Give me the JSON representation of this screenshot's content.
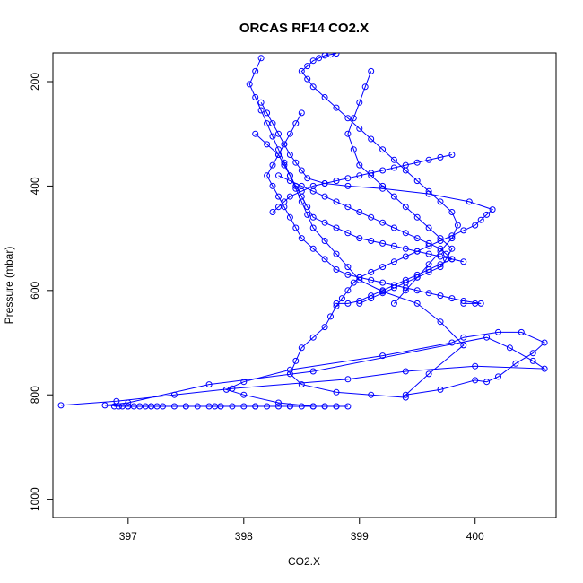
{
  "chart_data": {
    "type": "line",
    "title": "ORCAS RF14 CO2.X",
    "xlabel": "CO2.X",
    "ylabel": "Pressure (mbar)",
    "xlim": [
      396.35,
      400.7
    ],
    "ylim": [
      1035,
      145
    ],
    "y_reversed": true,
    "x_ticks": [
      397,
      398,
      399,
      400
    ],
    "y_ticks": [
      200,
      400,
      600,
      800,
      1000
    ],
    "marker": "open-circle",
    "color": "#0000ff",
    "grid": false,
    "legend": "none",
    "series": [
      {
        "x": [
          396.92,
          396.88,
          396.95,
          397.0,
          397.05,
          397.1,
          397.15,
          397.2,
          397.25,
          397.3,
          397.4,
          397.5,
          397.6,
          397.7,
          397.75,
          397.8,
          397.9,
          398.0,
          398.1,
          398.2,
          398.3,
          398.4,
          398.5,
          398.6,
          398.7,
          398.8,
          398.9
        ],
        "y": [
          822,
          822,
          822,
          822,
          822,
          822,
          822,
          822,
          822,
          822,
          822,
          822,
          822,
          822,
          822,
          822,
          822,
          822,
          822,
          822,
          822,
          822,
          822,
          822,
          822,
          822,
          822
        ]
      },
      {
        "x": [
          396.42,
          396.9,
          397.4,
          397.9,
          398.9,
          399.4,
          400.0,
          400.6,
          400.5,
          400.3,
          400.1,
          398.6,
          397.7,
          397.0,
          396.8,
          397.0,
          397.2,
          397.5,
          397.8,
          398.1,
          398.4,
          398.7,
          398.8
        ],
        "y": [
          820,
          812,
          800,
          788,
          770,
          755,
          745,
          750,
          735,
          710,
          690,
          755,
          780,
          815,
          820,
          822,
          822,
          822,
          822,
          822,
          822,
          822,
          822
        ]
      },
      {
        "x": [
          398.6,
          398.3,
          398.0,
          397.85,
          398.0,
          398.4,
          399.2,
          399.8,
          399.9,
          400.2,
          400.4,
          400.6,
          400.5,
          400.35,
          400.2,
          400.1,
          400.0,
          399.7,
          399.4,
          399.6,
          399.9,
          399.7,
          399.5,
          399.2,
          399.0,
          398.9,
          398.8,
          398.7,
          398.6,
          398.55,
          398.5,
          398.45,
          398.4,
          398.35,
          398.3,
          398.25,
          398.2,
          398.15,
          398.1,
          398.05,
          398.1,
          398.15
        ],
        "y": [
          822,
          815,
          800,
          790,
          775,
          752,
          725,
          700,
          690,
          680,
          680,
          700,
          720,
          740,
          765,
          775,
          772,
          790,
          800,
          760,
          705,
          660,
          625,
          602,
          580,
          555,
          530,
          505,
          480,
          455,
          430,
          405,
          380,
          355,
          330,
          305,
          280,
          255,
          230,
          205,
          180,
          155
        ]
      },
      {
        "x": [
          399.4,
          399.1,
          398.8,
          398.5,
          398.4,
          398.45,
          398.5,
          398.6,
          398.7,
          398.75,
          398.8,
          398.85,
          398.9,
          398.95,
          399.0,
          399.1,
          399.2,
          399.3,
          399.4,
          399.5,
          399.6,
          399.7,
          399.8,
          399.9,
          400.0,
          400.05,
          400.1,
          400.15,
          399.95,
          399.6,
          399.2,
          398.9,
          398.7,
          398.55,
          398.5,
          398.45,
          398.4,
          398.35,
          398.3,
          398.25,
          398.2,
          398.15
        ],
        "y": [
          805,
          800,
          795,
          780,
          760,
          735,
          710,
          690,
          670,
          650,
          630,
          615,
          600,
          585,
          575,
          565,
          555,
          545,
          535,
          525,
          515,
          505,
          495,
          485,
          475,
          465,
          455,
          445,
          430,
          415,
          405,
          400,
          395,
          385,
          370,
          355,
          340,
          320,
          300,
          280,
          260,
          240
        ]
      },
      {
        "x": [
          399.9,
          400.0,
          400.05,
          399.9,
          399.8,
          399.7,
          399.6,
          399.5,
          399.4,
          399.3,
          399.2,
          399.1,
          399.0,
          398.9,
          398.8,
          398.7,
          398.6,
          398.5,
          398.45,
          398.4,
          398.35,
          398.3,
          398.25,
          398.2,
          398.25,
          398.3,
          398.35,
          398.4,
          398.45,
          398.5
        ],
        "y": [
          625,
          625,
          625,
          620,
          615,
          610,
          605,
          600,
          595,
          590,
          585,
          580,
          575,
          570,
          560,
          540,
          520,
          500,
          480,
          460,
          440,
          420,
          400,
          380,
          360,
          340,
          320,
          300,
          280,
          260
        ]
      },
      {
        "x": [
          399.3,
          399.4,
          399.5,
          399.6,
          399.7,
          399.8,
          399.85,
          399.8,
          399.7,
          399.6,
          399.5,
          399.4,
          399.3,
          399.2,
          399.1,
          399.0,
          398.9,
          398.8,
          398.7,
          398.6,
          398.55,
          398.5,
          398.55,
          398.6,
          398.65,
          398.7,
          398.75,
          398.8
        ],
        "y": [
          625,
          600,
          575,
          550,
          525,
          500,
          475,
          450,
          430,
          410,
          390,
          370,
          350,
          330,
          310,
          290,
          270,
          250,
          230,
          210,
          195,
          180,
          170,
          160,
          155,
          150,
          148,
          146
        ]
      },
      {
        "x": [
          399.0,
          399.1,
          399.2,
          399.3,
          399.4,
          399.5,
          399.6,
          399.7,
          399.75,
          399.8,
          399.7,
          399.6,
          399.5,
          399.4,
          399.3,
          399.2,
          399.1,
          399.0,
          398.95,
          398.9,
          398.95,
          399.0,
          399.05,
          399.1
        ],
        "y": [
          625,
          615,
          605,
          595,
          585,
          575,
          565,
          555,
          540,
          520,
          500,
          480,
          460,
          440,
          420,
          400,
          380,
          360,
          330,
          300,
          270,
          240,
          210,
          180
        ]
      },
      {
        "x": [
          398.3,
          398.4,
          398.5,
          398.6,
          398.7,
          398.8,
          398.9,
          399.0,
          399.1,
          399.2,
          399.3,
          399.4,
          399.5,
          399.6,
          399.7,
          399.75,
          399.8,
          399.7,
          399.6,
          399.5,
          399.4,
          399.3,
          399.2,
          399.1,
          399.0,
          398.9,
          398.8
        ],
        "y": [
          380,
          390,
          400,
          410,
          420,
          430,
          440,
          450,
          460,
          470,
          480,
          490,
          500,
          510,
          520,
          530,
          540,
          550,
          560,
          570,
          580,
          590,
          600,
          610,
          620,
          625,
          625
        ]
      },
      {
        "x": [
          398.1,
          398.2,
          398.3,
          398.35,
          398.4,
          398.45,
          398.5,
          398.55,
          398.6,
          398.7,
          398.8,
          398.9,
          399.0,
          399.1,
          399.2,
          399.3,
          399.4,
          399.5,
          399.6,
          399.7,
          399.8,
          399.9
        ],
        "y": [
          300,
          320,
          340,
          360,
          380,
          400,
          420,
          440,
          460,
          470,
          480,
          490,
          500,
          505,
          510,
          515,
          520,
          525,
          530,
          535,
          540,
          545
        ]
      },
      {
        "x": [
          398.25,
          398.3,
          398.35,
          398.4,
          398.5,
          398.6,
          398.7,
          398.8,
          398.9,
          399.0,
          399.1,
          399.2,
          399.3,
          399.4,
          399.5,
          399.6,
          399.7,
          399.8
        ],
        "y": [
          450,
          440,
          430,
          420,
          410,
          400,
          395,
          390,
          385,
          380,
          375,
          370,
          365,
          360,
          355,
          350,
          345,
          340
        ]
      }
    ]
  }
}
